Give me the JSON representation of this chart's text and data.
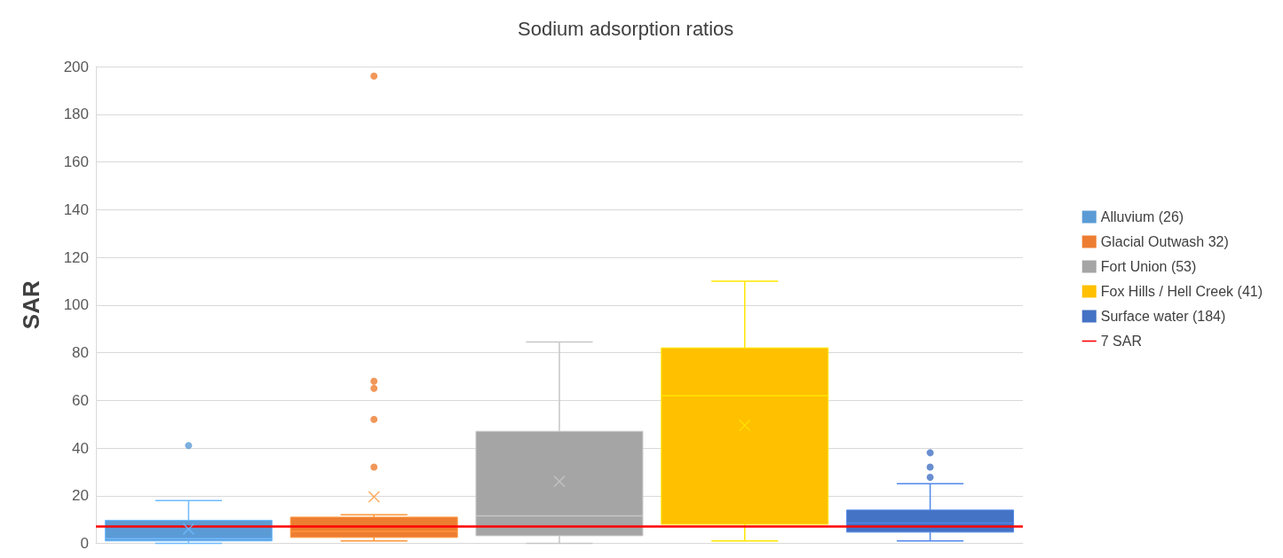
{
  "chart_data": {
    "type": "box",
    "title": "Sodium adsorption ratios",
    "ylabel": "SAR",
    "categories": [
      null,
      null,
      null,
      null,
      null
    ],
    "ylim": [
      0,
      200
    ],
    "yticks": [
      0,
      20,
      40,
      60,
      80,
      100,
      120,
      140,
      160,
      180,
      200
    ],
    "grid": "y",
    "legend": "right",
    "series": [
      {
        "name": "Alluvium (26)",
        "color": "#5b9bd5",
        "boxes": [
          {
            "low": 0,
            "q1": 1,
            "median": 2,
            "q3": 9.7,
            "high": 18,
            "mean": 6,
            "outliers": [
              41
            ]
          },
          null,
          null,
          null,
          null
        ]
      },
      {
        "name": "Glacial Outwash 32)",
        "color": "#ed7d31",
        "boxes": [
          null,
          {
            "low": 1,
            "q1": 2.5,
            "median": 5,
            "q3": 11,
            "high": 12,
            "mean": 19.5,
            "outliers": [
              196,
              68,
              65,
              52,
              32
            ]
          },
          null,
          null,
          null
        ]
      },
      {
        "name": "Fort Union (53)",
        "color": "#a5a5a5",
        "boxes": [
          null,
          null,
          {
            "low": 0,
            "q1": 3.2,
            "median": 11.5,
            "q3": 47,
            "high": 84.5,
            "mean": 26
          },
          null,
          null
        ]
      },
      {
        "name": "Fox Hills / Hell Creek (41)",
        "color": "#ffc000",
        "boxes": [
          null,
          null,
          null,
          {
            "low": 1,
            "q1": 8,
            "median": 62,
            "q3": 82,
            "high": 110,
            "mean": 49.5
          },
          null
        ]
      },
      {
        "name": "Surface water (184)",
        "color": "#4472c4",
        "boxes": [
          null,
          null,
          null,
          null,
          {
            "low": 1,
            "q1": 4.7,
            "median": 8.6,
            "q3": 14,
            "high": 25,
            "outliers": [
              38,
              32,
              27.7
            ]
          }
        ]
      }
    ],
    "ref_lines": [
      {
        "axis": "y",
        "value": 7,
        "label": "7 SAR",
        "color": "#ff0000"
      }
    ]
  }
}
